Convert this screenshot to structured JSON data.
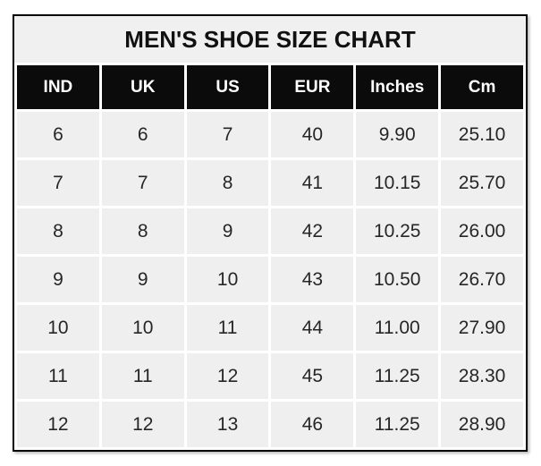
{
  "chart_data": {
    "type": "table",
    "title": "MEN'S SHOE SIZE CHART",
    "columns": [
      "IND",
      "UK",
      "US",
      "EUR",
      "Inches",
      "Cm"
    ],
    "rows": [
      [
        "6",
        "6",
        "7",
        "40",
        "9.90",
        "25.10"
      ],
      [
        "7",
        "7",
        "8",
        "41",
        "10.15",
        "25.70"
      ],
      [
        "8",
        "8",
        "9",
        "42",
        "10.25",
        "26.00"
      ],
      [
        "9",
        "9",
        "10",
        "43",
        "10.50",
        "26.70"
      ],
      [
        "10",
        "10",
        "11",
        "44",
        "11.00",
        "27.90"
      ],
      [
        "11",
        "11",
        "12",
        "45",
        "11.25",
        "28.30"
      ],
      [
        "12",
        "12",
        "13",
        "46",
        "11.25",
        "28.90"
      ]
    ],
    "legend": "none",
    "grid": "white cell gaps on gray cells"
  },
  "colors": {
    "page_bg": "#ffffff",
    "frame_border": "#000000",
    "title_bg": "#f0f0f0",
    "title_text": "#111111",
    "header_bg": "#0b0b0b",
    "header_text": "#ffffff",
    "cell_bg": "#efefef",
    "cell_text": "#262626",
    "cell_gap": "#ffffff"
  }
}
